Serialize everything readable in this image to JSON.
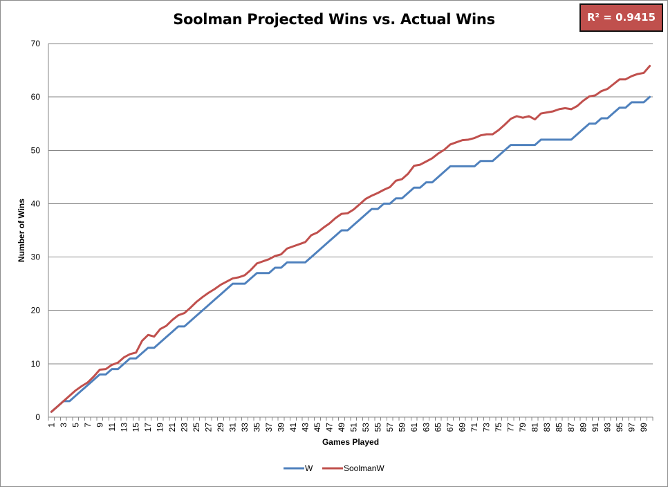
{
  "chart_data": {
    "type": "line",
    "title": "Soolman Projected Wins vs. Actual Wins",
    "annotation": "R² = 0.9415",
    "xlabel": "Games Played",
    "ylabel": "Number of Wins",
    "ylim": [
      0,
      70
    ],
    "y_ticks": [
      0,
      10,
      20,
      30,
      40,
      50,
      60,
      70
    ],
    "x_tick_labels": [
      "1",
      "3",
      "5",
      "7",
      "9",
      "11",
      "13",
      "15",
      "17",
      "19",
      "21",
      "23",
      "25",
      "27",
      "29",
      "31",
      "33",
      "35",
      "37",
      "39",
      "41",
      "43",
      "45",
      "47",
      "49",
      "51",
      "53",
      "55",
      "57",
      "59",
      "61",
      "63",
      "65",
      "67",
      "69",
      "71",
      "73",
      "75",
      "77",
      "79",
      "81",
      "83",
      "85",
      "87",
      "89",
      "91",
      "93",
      "95",
      "97",
      "99"
    ],
    "grid": true,
    "legend_position": "bottom",
    "series": [
      {
        "name": "W",
        "color": "#4f81bd",
        "values": [
          1,
          2,
          3,
          3,
          4,
          5,
          6,
          7,
          8,
          8,
          9,
          9,
          10,
          11,
          11,
          12,
          13,
          13,
          14,
          15,
          16,
          17,
          17,
          18,
          19,
          20,
          21,
          22,
          23,
          24,
          25,
          25,
          25,
          26,
          27,
          27,
          27,
          28,
          28,
          29,
          29,
          29,
          29,
          30,
          31,
          32,
          33,
          34,
          35,
          35,
          36,
          37,
          38,
          39,
          39,
          40,
          40,
          41,
          41,
          42,
          43,
          43,
          44,
          44,
          45,
          46,
          47,
          47,
          47,
          47,
          47,
          48,
          48,
          48,
          49,
          50,
          51,
          51,
          51,
          51,
          51,
          52,
          52,
          52,
          52,
          52,
          52,
          53,
          54,
          55,
          55,
          56,
          56,
          57,
          58,
          58,
          59,
          59,
          59,
          60
        ]
      },
      {
        "name": "SoolmanW",
        "color": "#c0504d",
        "values": [
          1,
          2,
          3,
          4,
          5,
          5.8,
          6.5,
          7.6,
          8.9,
          9,
          9.8,
          10.2,
          11.2,
          11.8,
          12.1,
          14.3,
          15.4,
          15.1,
          16.5,
          17.1,
          18.2,
          19.1,
          19.5,
          20.5,
          21.6,
          22.5,
          23.3,
          24,
          24.8,
          25.4,
          26,
          26.2,
          26.6,
          27.6,
          28.8,
          29.2,
          29.6,
          30.2,
          30.5,
          31.6,
          32,
          32.4,
          32.8,
          34.1,
          34.6,
          35.5,
          36.3,
          37.3,
          38.1,
          38.2,
          38.9,
          39.9,
          40.9,
          41.5,
          42,
          42.6,
          43.1,
          44.3,
          44.6,
          45.6,
          47.1,
          47.3,
          47.9,
          48.5,
          49.4,
          50.1,
          51.1,
          51.5,
          51.9,
          52,
          52.3,
          52.8,
          53,
          53,
          53.8,
          54.8,
          55.9,
          56.4,
          56.1,
          56.4,
          55.8,
          56.9,
          57.1,
          57.3,
          57.7,
          57.9,
          57.7,
          58.3,
          59.3,
          60.1,
          60.3,
          61.1,
          61.5,
          62.4,
          63.3,
          63.3,
          63.9,
          64.3,
          64.5,
          65.8
        ]
      }
    ]
  }
}
